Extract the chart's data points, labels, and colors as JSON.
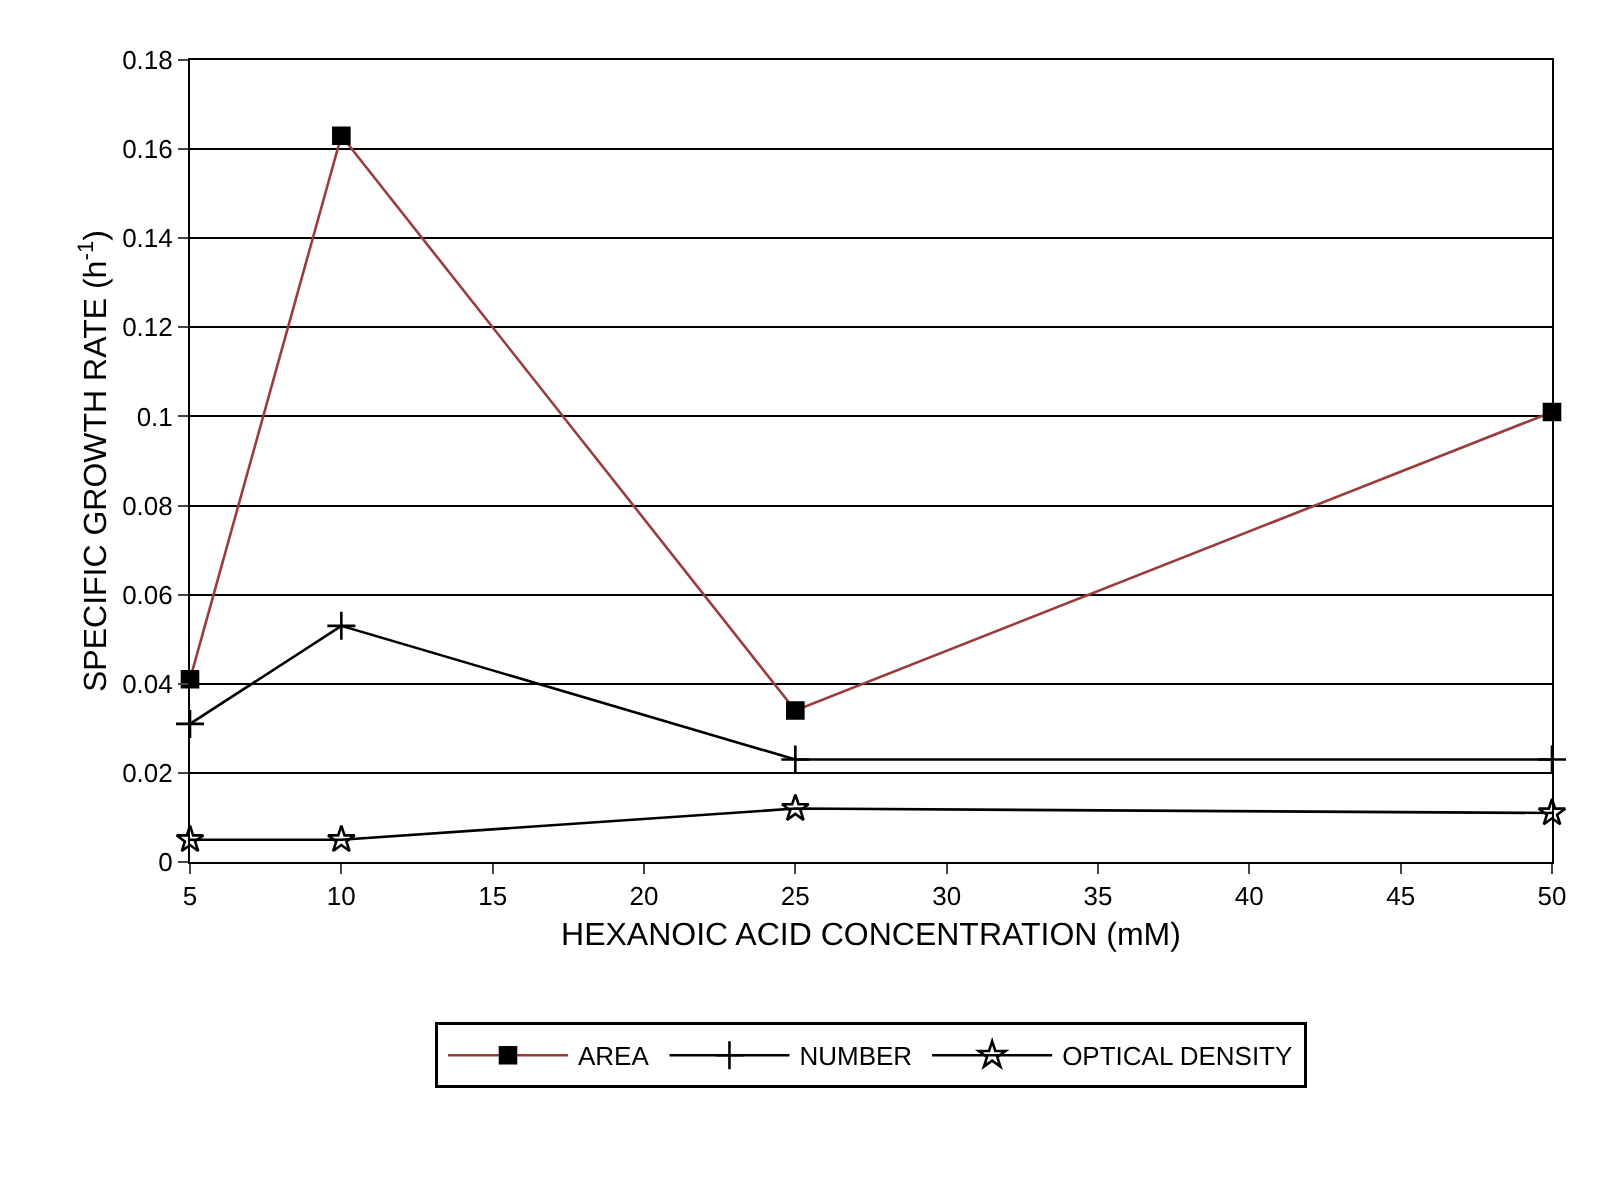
{
  "chart_data": {
    "type": "line",
    "xlabel": "HEXANOIC ACID CONCENTRATION (mM)",
    "ylabel": "SPECIFIC GROWTH RATE (h$^{-1}$)",
    "x": [
      5,
      10,
      25,
      50
    ],
    "series": [
      {
        "name": "AREA",
        "color": "#9a3c3c",
        "marker": "square",
        "values": [
          0.041,
          0.163,
          0.034,
          0.101
        ]
      },
      {
        "name": "NUMBER",
        "color": "#000000",
        "marker": "cross",
        "values": [
          0.031,
          0.053,
          0.023,
          0.023
        ]
      },
      {
        "name": "OPTICAL DENSITY",
        "color": "#000000",
        "marker": "star",
        "values": [
          0.005,
          0.005,
          0.012,
          0.011
        ]
      }
    ],
    "xlim": [
      5,
      50
    ],
    "xticks": [
      5,
      10,
      15,
      20,
      25,
      30,
      35,
      40,
      45,
      50
    ],
    "ylim": [
      0,
      0.18
    ],
    "yticks": [
      0,
      0.02,
      0.04,
      0.06,
      0.08,
      0.1,
      0.12,
      0.14,
      0.16,
      0.18
    ],
    "grid": "y",
    "legend": "bottom",
    "line_style": "solid"
  }
}
